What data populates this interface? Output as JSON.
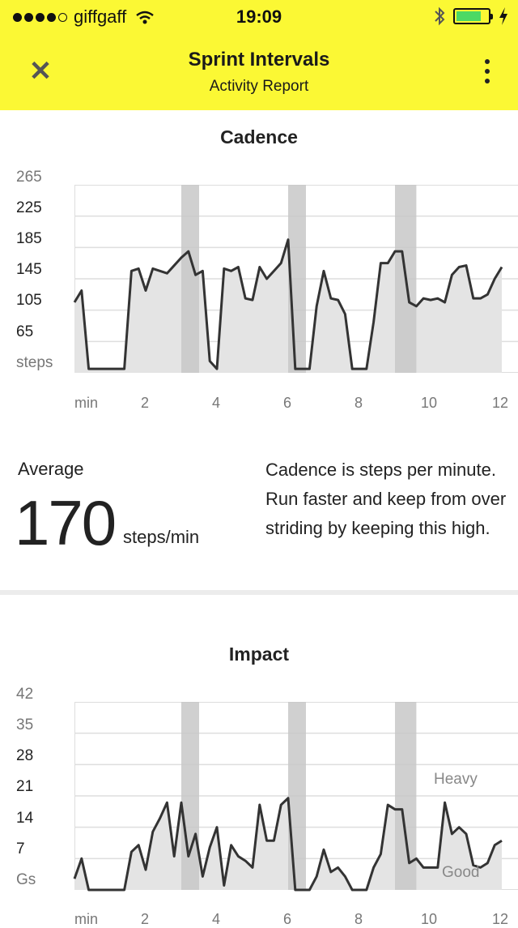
{
  "status_bar": {
    "carrier": "giffgaff",
    "time": "19:09"
  },
  "header": {
    "close_icon": "close-icon",
    "title": "Sprint Intervals",
    "subtitle": "Activity Report",
    "menu_icon": "more-vertical-icon"
  },
  "colors": {
    "header_bg": "#fbf834",
    "highlight_band": "#c8c8c8",
    "area_fill": "#e4e4e4",
    "line": "#333333"
  },
  "cadence": {
    "title": "Cadence",
    "y_ticks": [
      "265",
      "225",
      "185",
      "145",
      "105",
      "65",
      "steps"
    ],
    "x_ticks": [
      "min",
      "2",
      "4",
      "6",
      "8",
      "10",
      "12"
    ],
    "average_label": "Average",
    "average_value": "170",
    "average_unit": "steps/min",
    "description": "Cadence is steps per minute. Run faster and keep from over striding by keeping this high."
  },
  "impact": {
    "title": "Impact",
    "y_ticks": [
      "42",
      "35",
      "28",
      "21",
      "14",
      "7",
      "Gs"
    ],
    "x_ticks": [
      "min",
      "2",
      "4",
      "6",
      "8",
      "10",
      "12"
    ],
    "band_heavy": "Heavy",
    "band_good": "Good"
  },
  "chart_data": [
    {
      "type": "area",
      "title": "Cadence",
      "ylabel": "steps",
      "xlabel": "min",
      "ylim": [
        25,
        265
      ],
      "xlim": [
        0,
        12
      ],
      "highlight_intervals": [
        [
          3.0,
          3.5
        ],
        [
          6.0,
          6.5
        ],
        [
          9.0,
          9.6
        ]
      ],
      "series": [
        {
          "x": [
            0,
            0.2,
            0.4,
            0.6,
            0.8,
            1.0,
            1.2,
            1.4,
            1.6,
            1.8,
            2.0,
            2.2,
            2.4,
            2.6,
            2.8,
            3.0,
            3.2,
            3.4,
            3.6,
            3.8,
            4.0,
            4.2,
            4.4,
            4.6,
            4.8,
            5.0,
            5.2,
            5.4,
            5.6,
            5.8,
            6.0,
            6.2,
            6.4,
            6.6,
            6.8,
            7.0,
            7.2,
            7.4,
            7.6,
            7.8,
            8.0,
            8.2,
            8.4,
            8.6,
            8.8,
            9.0,
            9.2,
            9.4,
            9.6,
            9.8,
            10.0,
            10.2,
            10.4,
            10.6,
            10.8,
            11.0,
            11.2,
            11.4,
            11.6,
            11.8,
            12.0
          ],
          "values": [
            115,
            130,
            30,
            30,
            30,
            30,
            30,
            30,
            155,
            158,
            130,
            158,
            155,
            152,
            162,
            172,
            180,
            150,
            155,
            40,
            30,
            158,
            155,
            160,
            120,
            118,
            160,
            145,
            155,
            165,
            195,
            30,
            30,
            30,
            110,
            155,
            120,
            118,
            100,
            30,
            30,
            30,
            90,
            165,
            165,
            180,
            180,
            115,
            110,
            120,
            118,
            120,
            115,
            150,
            160,
            162,
            120,
            120,
            125,
            145,
            160
          ]
        }
      ]
    },
    {
      "type": "area",
      "title": "Impact",
      "ylabel": "Gs",
      "xlabel": "min",
      "ylim": [
        0,
        42
      ],
      "xlim": [
        0,
        12
      ],
      "highlight_intervals": [
        [
          3.0,
          3.5
        ],
        [
          6.0,
          6.5
        ],
        [
          9.0,
          9.6
        ]
      ],
      "series": [
        {
          "x": [
            0,
            0.2,
            0.4,
            0.6,
            0.8,
            1.0,
            1.2,
            1.4,
            1.6,
            1.8,
            2.0,
            2.2,
            2.4,
            2.6,
            2.8,
            3.0,
            3.2,
            3.4,
            3.6,
            3.8,
            4.0,
            4.2,
            4.4,
            4.6,
            4.8,
            5.0,
            5.2,
            5.4,
            5.6,
            5.8,
            6.0,
            6.2,
            6.4,
            6.6,
            6.8,
            7.0,
            7.2,
            7.4,
            7.6,
            7.8,
            8.0,
            8.2,
            8.4,
            8.6,
            8.8,
            9.0,
            9.2,
            9.4,
            9.6,
            9.8,
            10.0,
            10.2,
            10.4,
            10.6,
            10.8,
            11.0,
            11.2,
            11.4,
            11.6,
            11.8,
            12.0
          ],
          "values": [
            2.5,
            7,
            0,
            0,
            0,
            0,
            0,
            0,
            8.5,
            10,
            4.5,
            13,
            16,
            19.5,
            7.5,
            19.5,
            7.5,
            12.5,
            3,
            9.5,
            14,
            1,
            10,
            7.5,
            6.5,
            5,
            19,
            11,
            11,
            19,
            20.5,
            0,
            0,
            0,
            3,
            9,
            4,
            5,
            3,
            0,
            0,
            0,
            5,
            8,
            19,
            18,
            18,
            6,
            7,
            5,
            5,
            5,
            19.5,
            12.5,
            14,
            12.5,
            5.5,
            5,
            6,
            10,
            11
          ]
        }
      ]
    }
  ]
}
